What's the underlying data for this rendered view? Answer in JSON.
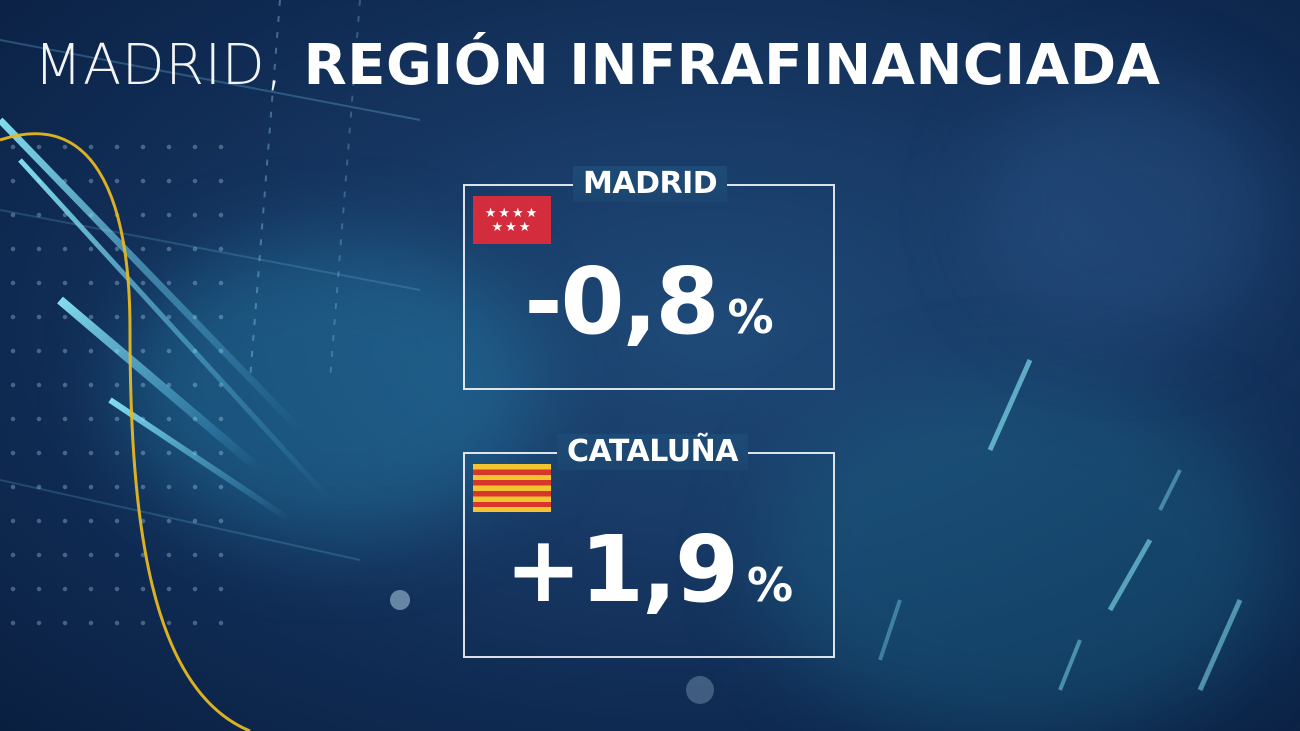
{
  "title": {
    "light_part": "MADRID,",
    "bold_part": "REGIÓN INFRAFINANCIADA"
  },
  "panels": [
    {
      "label": "MADRID",
      "flag": "madrid-flag-icon",
      "value": "-0,8",
      "unit": "%"
    },
    {
      "label": "CATALUÑA",
      "flag": "cataluna-flag-icon",
      "value": "+1,9",
      "unit": "%"
    }
  ],
  "colors": {
    "background": "#183a66",
    "accent_yellow": "#e6b820",
    "madrid_red": "#d32c3c",
    "catalan_gold": "#f2c530",
    "catalan_red": "#d8362a",
    "text": "#ffffff"
  }
}
